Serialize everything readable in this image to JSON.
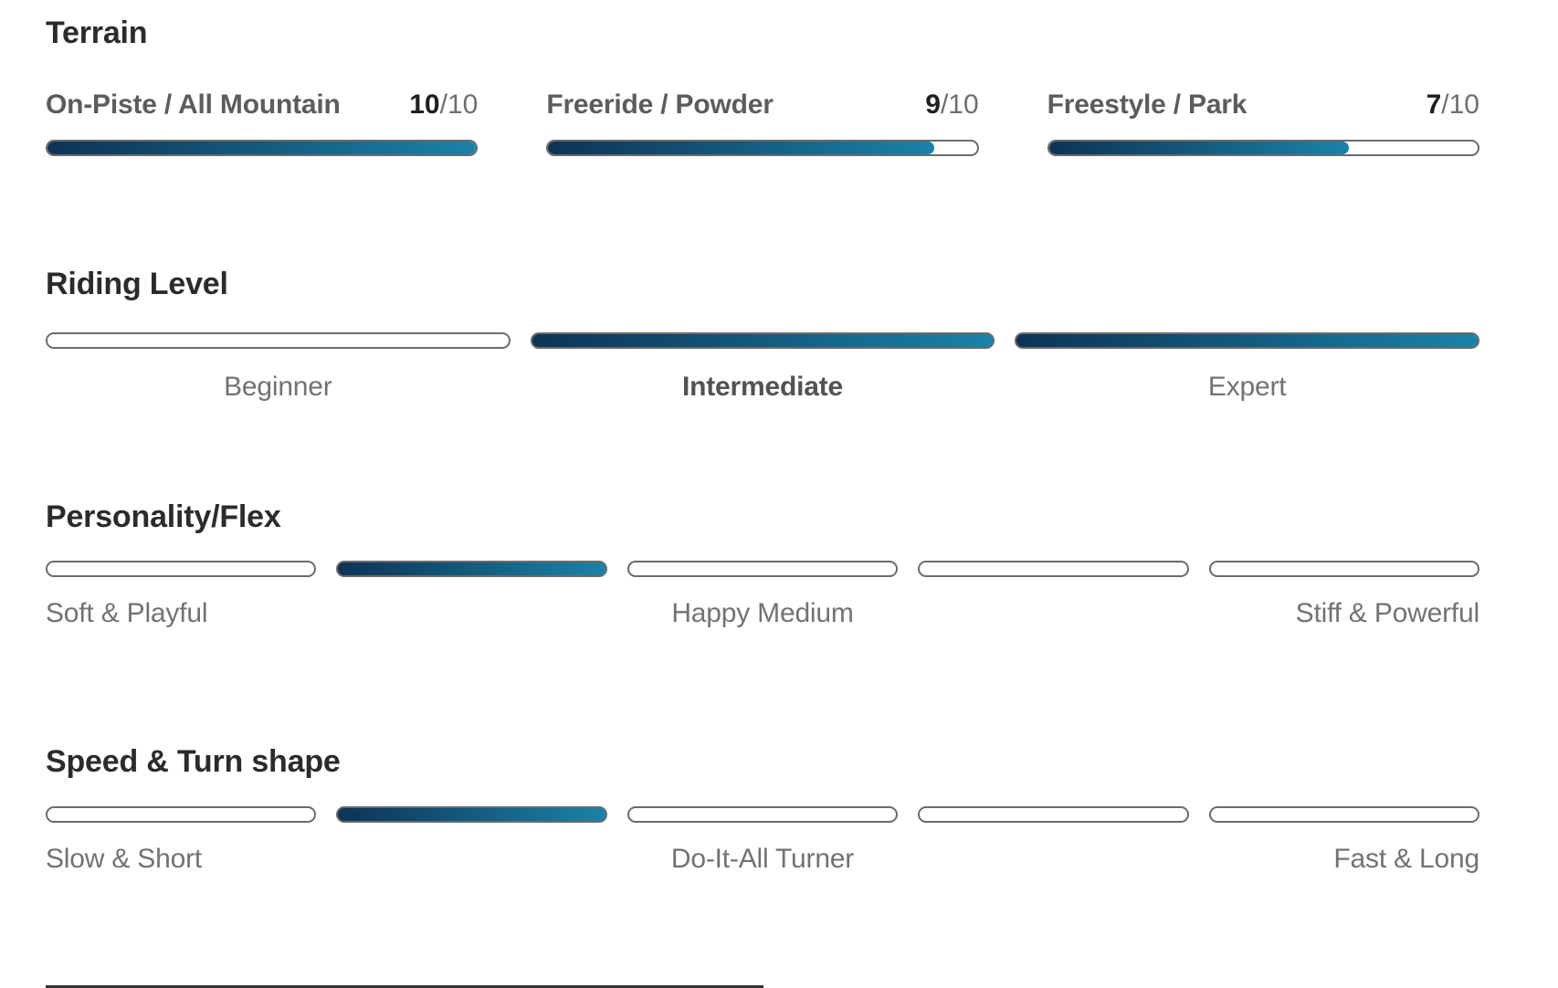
{
  "palette": {
    "gradient_start": "#0d3355",
    "gradient_end": "#1b82a8",
    "track_border": "#6a6b6d",
    "heading_color": "#2b2b2b",
    "label_color": "#5b5c5e",
    "muted_color": "#717274"
  },
  "terrain": {
    "title": "Terrain",
    "items": [
      {
        "label": "On-Piste / All Mountain",
        "value": "10",
        "max_label": "/10",
        "pct": "100%"
      },
      {
        "label": "Freeride / Powder",
        "value": "9",
        "max_label": "/10",
        "pct": "90%"
      },
      {
        "label": "Freestyle / Park",
        "value": "7",
        "max_label": "/10",
        "pct": "70%"
      }
    ]
  },
  "riding_level": {
    "title": "Riding Level",
    "segments": [
      {
        "label": "Beginner",
        "filled": false,
        "emphasis": false
      },
      {
        "label": "Intermediate",
        "filled": true,
        "emphasis": true
      },
      {
        "label": "Expert",
        "filled": true,
        "emphasis": false
      }
    ]
  },
  "personality_flex": {
    "title": "Personality/Flex",
    "segments": [
      {
        "filled": false
      },
      {
        "filled": true
      },
      {
        "filled": false
      },
      {
        "filled": false
      },
      {
        "filled": false
      }
    ],
    "labels": {
      "left": "Soft & Playful",
      "center": "Happy Medium",
      "right": "Stiff & Powerful"
    }
  },
  "speed_turn": {
    "title": "Speed & Turn shape",
    "segments": [
      {
        "filled": false
      },
      {
        "filled": true
      },
      {
        "filled": false
      },
      {
        "filled": false
      },
      {
        "filled": false
      }
    ],
    "labels": {
      "left": "Slow & Short",
      "center": "Do-It-All Turner",
      "right": "Fast & Long"
    }
  }
}
